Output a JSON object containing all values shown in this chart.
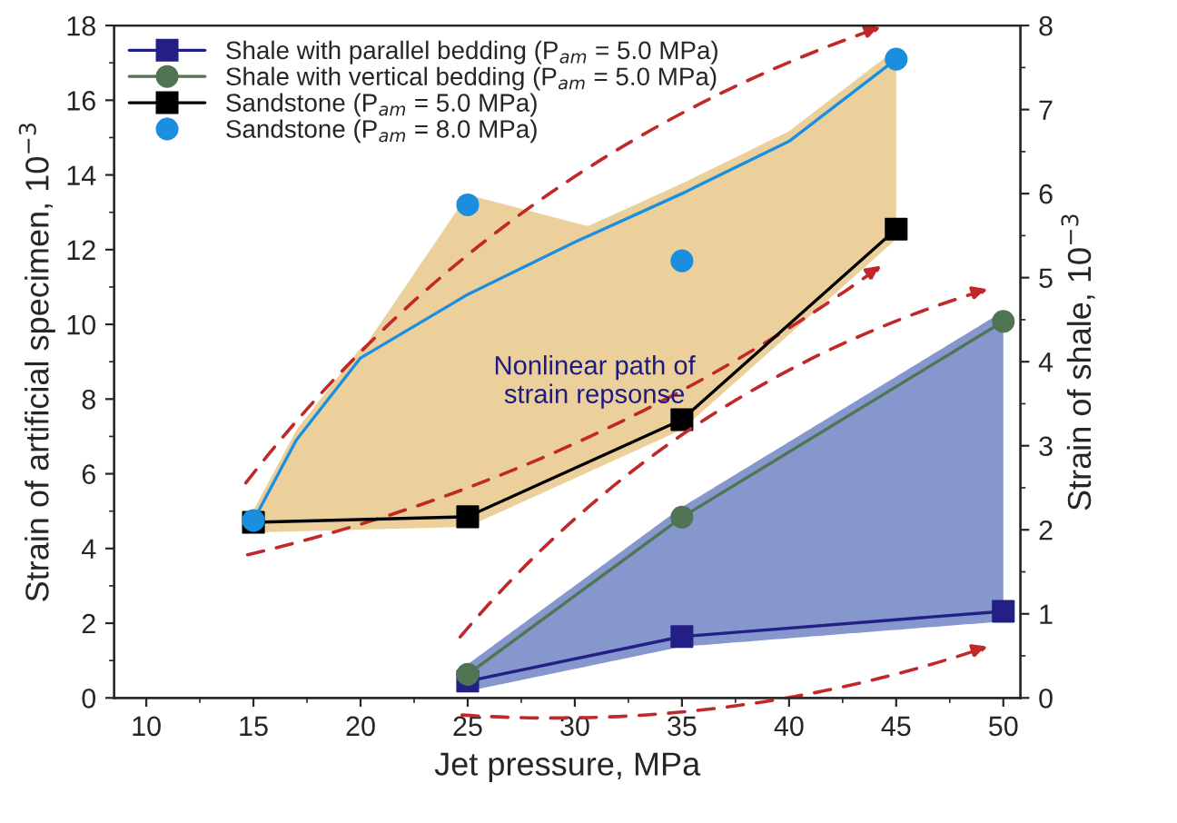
{
  "chart_data": {
    "type": "line",
    "xlabel": "Jet pressure, MPa",
    "ylabel": "Strain of artificial specimen, 10$^{−3}$",
    "y2label": "Strain of shale, 10$^{−3}$",
    "xlim": [
      8.5,
      50.8
    ],
    "xticks": [
      10,
      15,
      20,
      25,
      30,
      35,
      40,
      45,
      50
    ],
    "ylim": [
      0,
      18
    ],
    "yticks": [
      0,
      2,
      4,
      6,
      8,
      10,
      12,
      14,
      16,
      18
    ],
    "y2lim": [
      0,
      8
    ],
    "y2ticks": [
      0,
      1,
      2,
      3,
      4,
      5,
      6,
      7,
      8
    ],
    "grid": false,
    "legend": "top left",
    "series": [
      {
        "name": "Shale with parallel bedding (P$_{am}$ = 5.0 MPa)",
        "marker": "square",
        "axis": "y2",
        "color": "#231f85",
        "x": [
          25,
          35,
          50
        ],
        "values": [
          0.2,
          0.73,
          1.03
        ]
      },
      {
        "name": "Shale with vertical bedding (P$_{am}$ = 5.0 MPa)",
        "marker": "circle",
        "axis": "y2",
        "color": "#4f7552",
        "x": [
          25,
          35,
          50
        ],
        "values": [
          0.28,
          2.15,
          4.48
        ]
      },
      {
        "name": "Sandstone (P$_{am}$ = 5.0 MPa)",
        "marker": "square",
        "color": "#000000",
        "x": [
          15,
          25,
          35,
          45
        ],
        "values": [
          4.7,
          4.85,
          7.45,
          12.55
        ]
      },
      {
        "name": "Sandstone (P$_{am}$ = 8.0 MPa)",
        "type": "scatter",
        "marker": "circle",
        "color": "#1a8fe0",
        "x": [
          15,
          25,
          35,
          45
        ],
        "values": [
          4.75,
          13.2,
          11.7,
          17.1
        ]
      },
      {
        "marker": "none",
        "color": "#1a8fe0",
        "x": [
          15,
          17,
          20,
          25,
          30,
          35,
          40,
          45
        ],
        "values": [
          4.75,
          6.9,
          9.1,
          10.8,
          12.2,
          13.5,
          14.9,
          17.1
        ]
      }
    ],
    "annotations": [
      "Nonlinear path of\nstrain repsonse"
    ]
  }
}
